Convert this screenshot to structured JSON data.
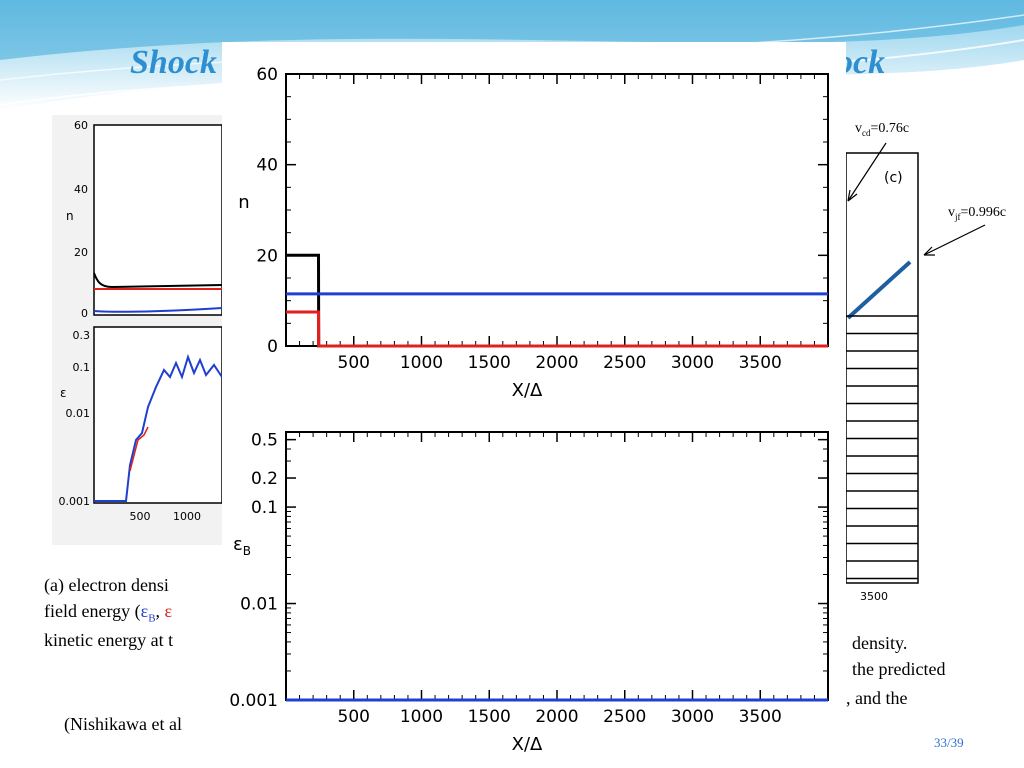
{
  "slide": {
    "title_fragment_left": "Shock",
    "title_fragment_right": "ock",
    "page_number": "33/39"
  },
  "background_figure_left": {
    "panel_top": {
      "ylabel": "n",
      "yticks": [
        "60",
        "40",
        "20",
        "0"
      ]
    },
    "panel_bottom": {
      "ylabel": "ε",
      "yticks": [
        "0.3",
        "0.1",
        "0.01",
        "0.001"
      ],
      "xticks": [
        "500",
        "1000"
      ]
    }
  },
  "background_figure_right": {
    "panel_label": "(c)",
    "xtick": "3500"
  },
  "annotations": {
    "vcd": {
      "v": "v",
      "sub": "cd",
      "rest": "=0.76c"
    },
    "vjf": {
      "v": "v",
      "sub": "jf",
      "rest": "=0.996c"
    }
  },
  "caption": {
    "line1_start": "(a)  electron densi",
    "line2_start": "field energy (",
    "eps_b": "ε",
    "eps_b_sub": "B",
    "comma": ",",
    "eps_e": "ε",
    "line3_start": "kinetic energy at t",
    "line_right1": "density.",
    "line_right2": "the predicted",
    "line_right3": ", and the",
    "citation": "(Nishikawa et al"
  },
  "colors": {
    "title": "#2e8fd0",
    "black_series": "#000000",
    "red_series": "#e0201c",
    "blue_series": "#1f3fd0",
    "arrow_line": "#1f5f9f"
  },
  "chart_data": [
    {
      "type": "line",
      "xlabel": "X/Δ",
      "ylabel": "n",
      "xlim": [
        0,
        4000
      ],
      "ylim": [
        0,
        60
      ],
      "xticks": [
        500,
        1000,
        1500,
        2000,
        2500,
        3000,
        3500
      ],
      "yticks": [
        0,
        20,
        40,
        60
      ],
      "series": [
        {
          "color": "#000000",
          "x": [
            0,
            1,
            240,
            241,
            4000
          ],
          "y": [
            20,
            20,
            20,
            0,
            0
          ]
        },
        {
          "color": "#e0201c",
          "x": [
            0,
            1,
            240,
            241,
            4000
          ],
          "y": [
            7.5,
            7.5,
            7.5,
            0,
            0
          ]
        },
        {
          "color": "#1f3fd0",
          "x": [
            0,
            4000
          ],
          "y": [
            11.5,
            11.5
          ]
        }
      ]
    },
    {
      "type": "line",
      "xlabel": "X/Δ",
      "ylabel": "εB",
      "yscale": "log",
      "xlim": [
        0,
        4000
      ],
      "ylim": [
        0.001,
        0.6
      ],
      "xticks": [
        500,
        1000,
        1500,
        2000,
        2500,
        3000,
        3500
      ],
      "yticks": [
        0.001,
        0.01,
        0.1,
        0.2,
        0.5
      ],
      "ytick_labels": [
        "0.001",
        "0.01",
        "0.1",
        "0.2",
        "0.5"
      ],
      "series": [
        {
          "color": "#1f3fd0",
          "x": [
            0,
            4000
          ],
          "y": [
            0.001,
            0.001
          ]
        }
      ]
    }
  ]
}
